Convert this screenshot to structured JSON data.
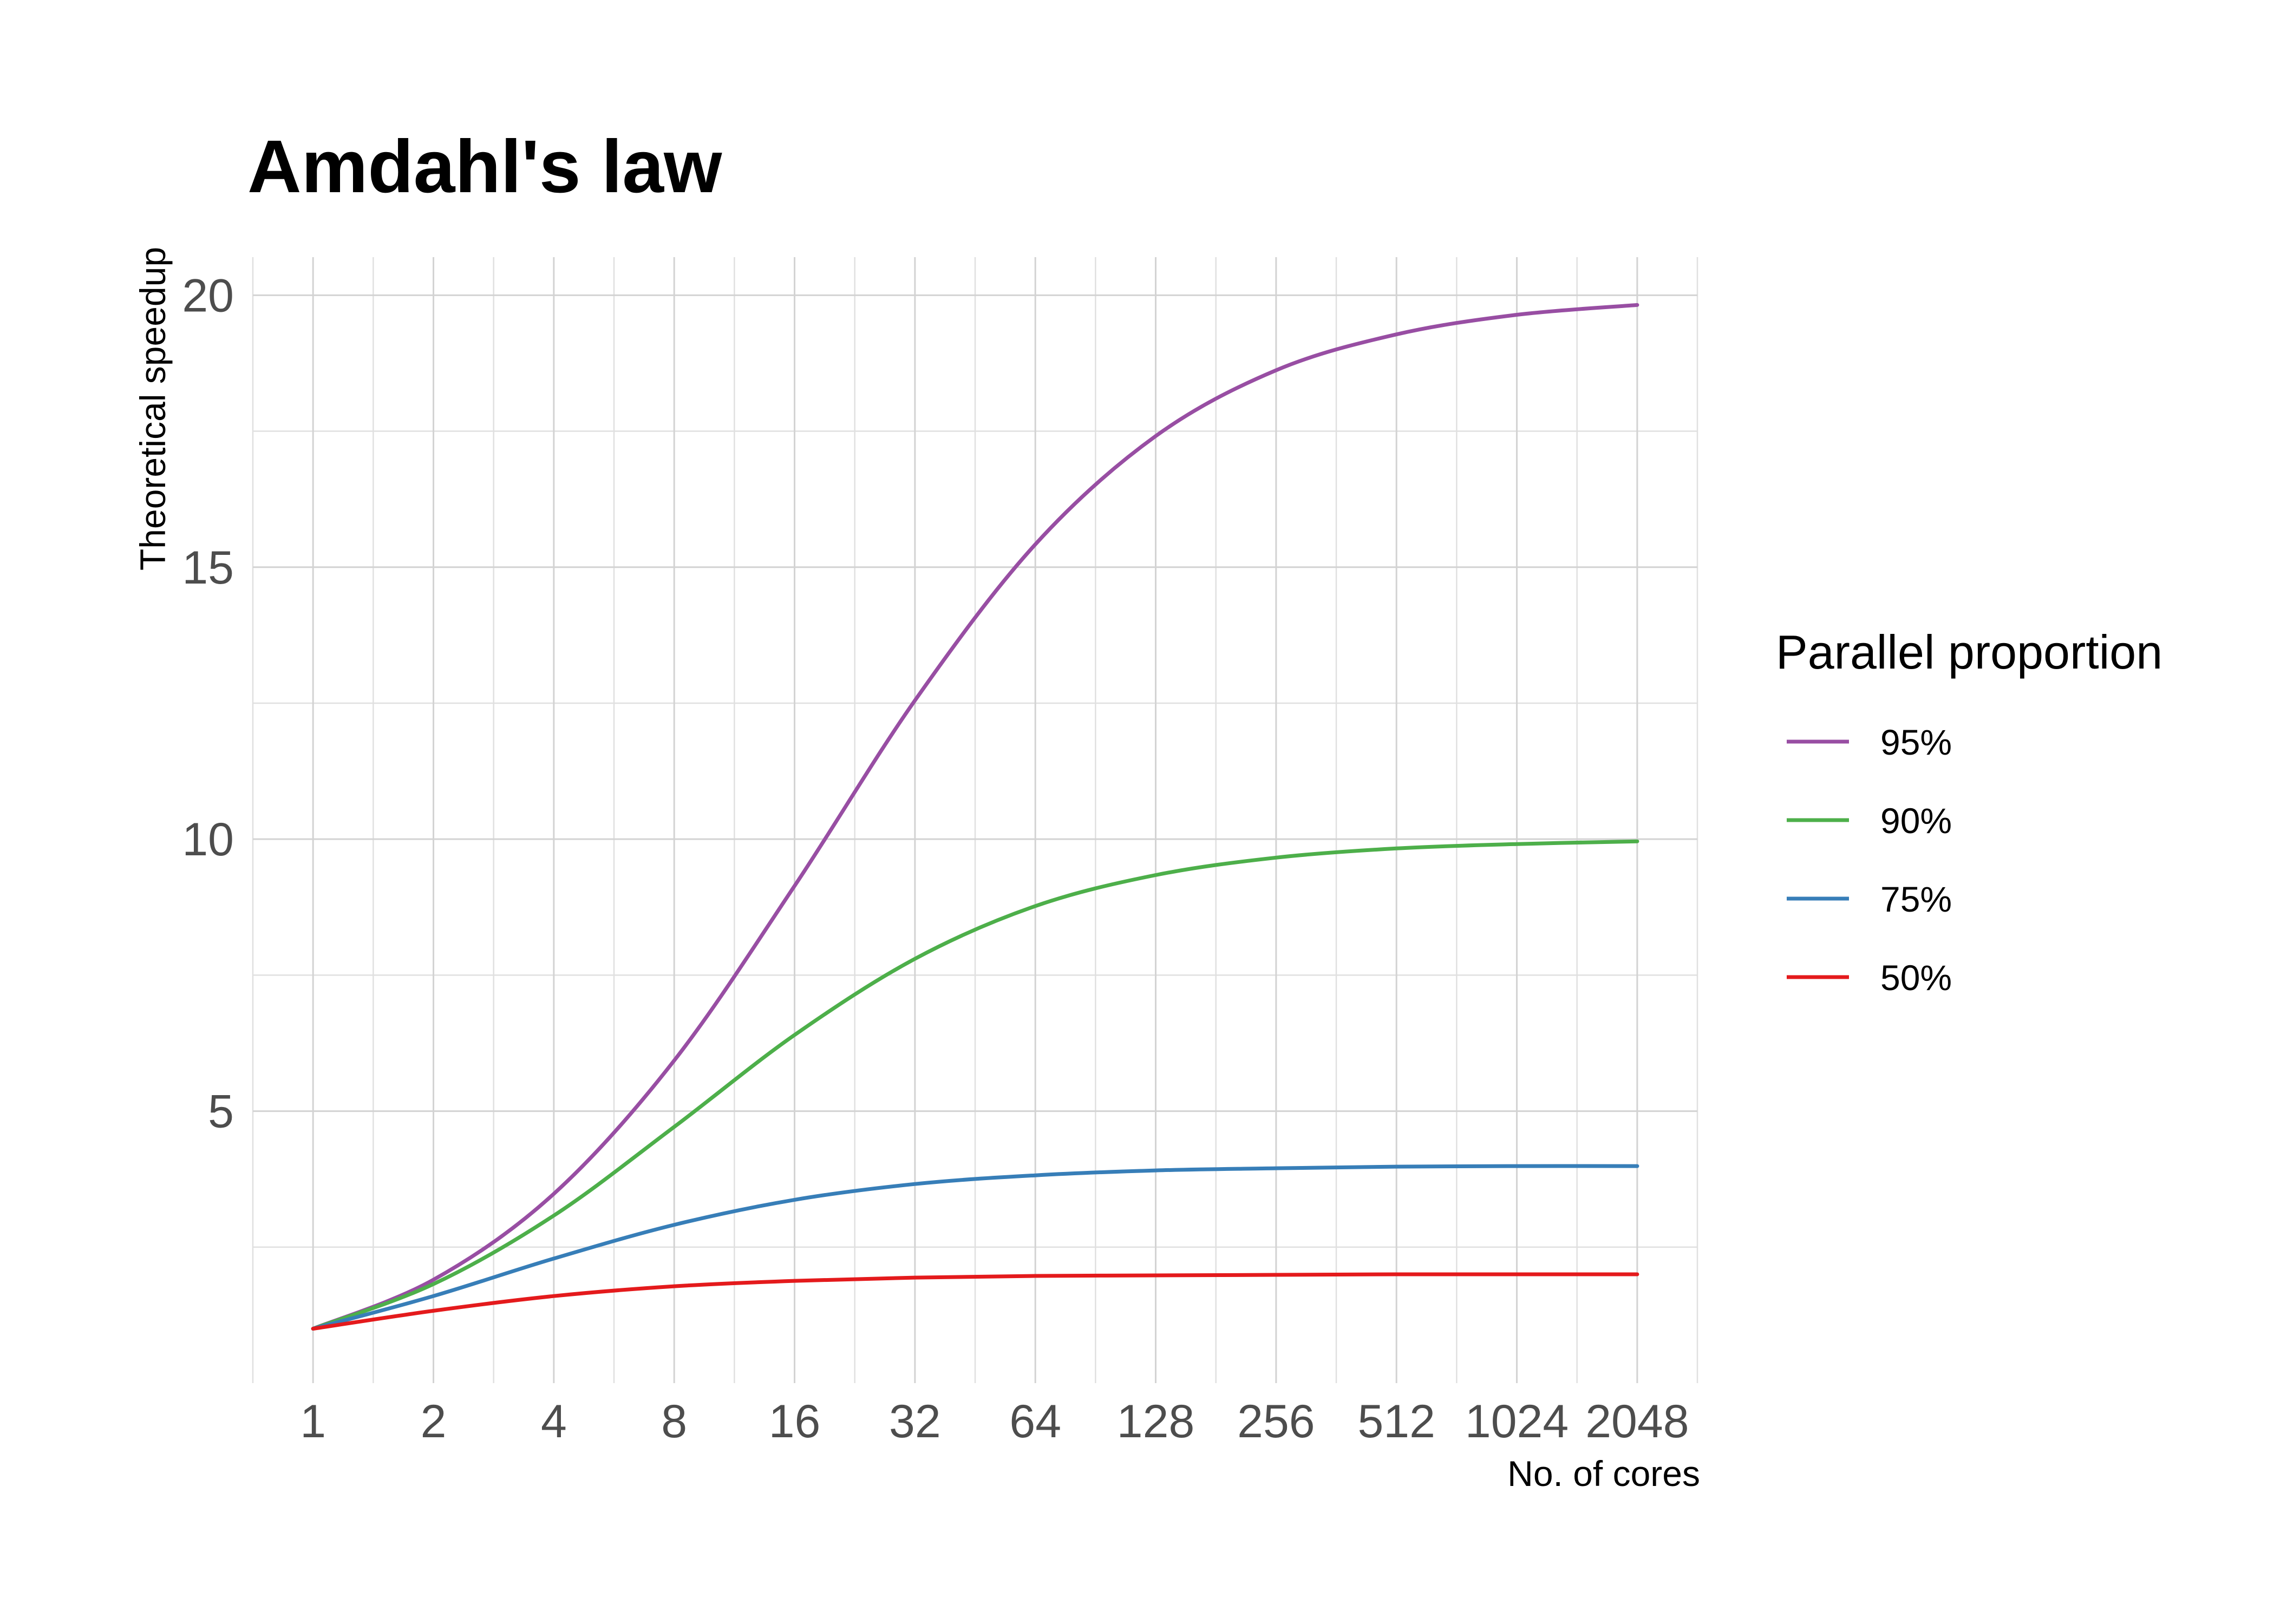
{
  "chart_data": {
    "type": "line",
    "title": "Amdahl's law",
    "xlabel": "No. of cores",
    "ylabel": "Theoretical speedup",
    "x_scale": "log2",
    "x": [
      1,
      2,
      4,
      8,
      16,
      32,
      64,
      128,
      256,
      512,
      1024,
      2048
    ],
    "x_tick_labels": [
      "1",
      "2",
      "4",
      "8",
      "16",
      "32",
      "64",
      "128",
      "256",
      "512",
      "1024",
      "2048"
    ],
    "y_ticks": [
      5,
      10,
      15,
      20
    ],
    "y_tick_labels": [
      "5",
      "10",
      "15",
      "20"
    ],
    "xlim": [
      0.707,
      2896
    ],
    "ylim": [
      0,
      20.7
    ],
    "grid": true,
    "legend": {
      "title": "Parallel proportion",
      "placement": "right"
    },
    "series": [
      {
        "name": "95%",
        "color": "#984ea3",
        "values": [
          1,
          1.9,
          3.48,
          5.93,
          9.14,
          12.55,
          15.42,
          17.41,
          18.62,
          19.28,
          19.64,
          19.82
        ]
      },
      {
        "name": "90%",
        "color": "#4daf4a",
        "values": [
          1,
          1.82,
          3.08,
          4.71,
          6.4,
          7.8,
          8.77,
          9.34,
          9.66,
          9.83,
          9.91,
          9.96
        ]
      },
      {
        "name": "75%",
        "color": "#377eb8",
        "values": [
          1,
          1.6,
          2.29,
          2.91,
          3.37,
          3.66,
          3.82,
          3.91,
          3.95,
          3.98,
          3.99,
          3.99
        ]
      },
      {
        "name": "50%",
        "color": "#e41a1c",
        "values": [
          1,
          1.33,
          1.6,
          1.78,
          1.88,
          1.94,
          1.97,
          1.98,
          1.99,
          2.0,
          2.0,
          2.0
        ]
      }
    ]
  }
}
